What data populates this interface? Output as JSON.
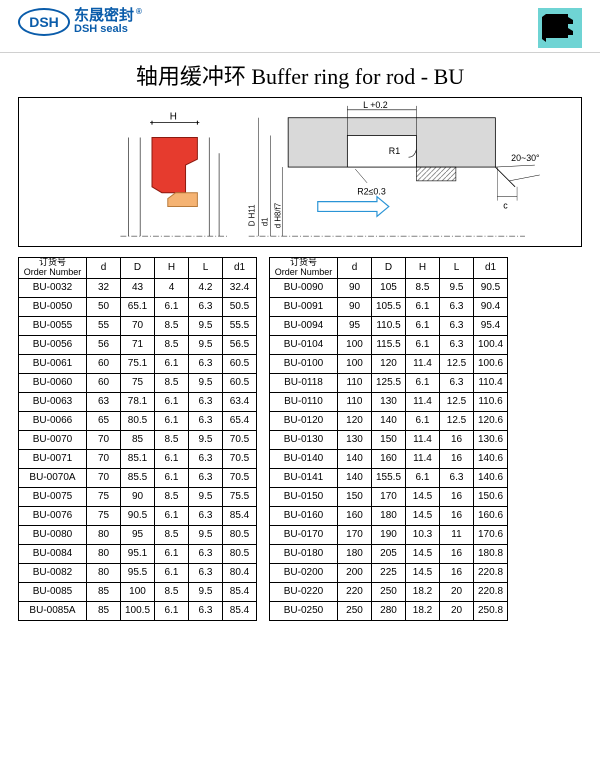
{
  "header": {
    "logo_abbr": "DSH",
    "logo_cn": "东晟密封",
    "logo_en": "DSH seals",
    "reg_mark": "®"
  },
  "title": "轴用缓冲环 Buffer ring for rod - BU",
  "diagram": {
    "labels": {
      "H": "H",
      "L": "L  +0.2",
      "R1": "R1",
      "R2": "R2≤0.3",
      "angle": "20~30°",
      "c": "c",
      "dH11": "D H11",
      "df7": "d  f7",
      "dH8": "d H8/f7",
      "d1": "d1"
    },
    "colors": {
      "seal_red": "#e63b2e",
      "seal_orange": "#f5b373",
      "housing": "#d9d9d9",
      "hatch": "#888888",
      "arrow": "#2a94d6",
      "line": "#000000",
      "teal": "#6fd4d4"
    }
  },
  "table_header": {
    "order_cn": "订货号",
    "order_en": "Order Number",
    "d": "d",
    "D": "D",
    "H": "H",
    "L": "L",
    "d1": "d1"
  },
  "left_rows": [
    [
      "BU-0032",
      "32",
      "43",
      "4",
      "4.2",
      "32.4"
    ],
    [
      "BU-0050",
      "50",
      "65.1",
      "6.1",
      "6.3",
      "50.5"
    ],
    [
      "BU-0055",
      "55",
      "70",
      "8.5",
      "9.5",
      "55.5"
    ],
    [
      "BU-0056",
      "56",
      "71",
      "8.5",
      "9.5",
      "56.5"
    ],
    [
      "BU-0061",
      "60",
      "75.1",
      "6.1",
      "6.3",
      "60.5"
    ],
    [
      "BU-0060",
      "60",
      "75",
      "8.5",
      "9.5",
      "60.5"
    ],
    [
      "BU-0063",
      "63",
      "78.1",
      "6.1",
      "6.3",
      "63.4"
    ],
    [
      "BU-0066",
      "65",
      "80.5",
      "6.1",
      "6.3",
      "65.4"
    ],
    [
      "BU-0070",
      "70",
      "85",
      "8.5",
      "9.5",
      "70.5"
    ],
    [
      "BU-0071",
      "70",
      "85.1",
      "6.1",
      "6.3",
      "70.5"
    ],
    [
      "BU-0070A",
      "70",
      "85.5",
      "6.1",
      "6.3",
      "70.5"
    ],
    [
      "BU-0075",
      "75",
      "90",
      "8.5",
      "9.5",
      "75.5"
    ],
    [
      "BU-0076",
      "75",
      "90.5",
      "6.1",
      "6.3",
      "85.4"
    ],
    [
      "BU-0080",
      "80",
      "95",
      "8.5",
      "9.5",
      "80.5"
    ],
    [
      "BU-0084",
      "80",
      "95.1",
      "6.1",
      "6.3",
      "80.5"
    ],
    [
      "BU-0082",
      "80",
      "95.5",
      "6.1",
      "6.3",
      "80.4"
    ],
    [
      "BU-0085",
      "85",
      "100",
      "8.5",
      "9.5",
      "85.4"
    ],
    [
      "BU-0085A",
      "85",
      "100.5",
      "6.1",
      "6.3",
      "85.4"
    ]
  ],
  "right_rows": [
    [
      "BU-0090",
      "90",
      "105",
      "8.5",
      "9.5",
      "90.5"
    ],
    [
      "BU-0091",
      "90",
      "105.5",
      "6.1",
      "6.3",
      "90.4"
    ],
    [
      "BU-0094",
      "95",
      "110.5",
      "6.1",
      "6.3",
      "95.4"
    ],
    [
      "BU-0104",
      "100",
      "115.5",
      "6.1",
      "6.3",
      "100.4"
    ],
    [
      "BU-0100",
      "100",
      "120",
      "11.4",
      "12.5",
      "100.6"
    ],
    [
      "BU-0118",
      "110",
      "125.5",
      "6.1",
      "6.3",
      "110.4"
    ],
    [
      "BU-0110",
      "110",
      "130",
      "11.4",
      "12.5",
      "110.6"
    ],
    [
      "BU-0120",
      "120",
      "140",
      "6.1",
      "12.5",
      "120.6"
    ],
    [
      "BU-0130",
      "130",
      "150",
      "11.4",
      "16",
      "130.6"
    ],
    [
      "BU-0140",
      "140",
      "160",
      "11.4",
      "16",
      "140.6"
    ],
    [
      "BU-0141",
      "140",
      "155.5",
      "6.1",
      "6.3",
      "140.6"
    ],
    [
      "BU-0150",
      "150",
      "170",
      "14.5",
      "16",
      "150.6"
    ],
    [
      "BU-0160",
      "160",
      "180",
      "14.5",
      "16",
      "160.6"
    ],
    [
      "BU-0170",
      "170",
      "190",
      "10.3",
      "11",
      "170.6"
    ],
    [
      "BU-0180",
      "180",
      "205",
      "14.5",
      "16",
      "180.8"
    ],
    [
      "BU-0200",
      "200",
      "225",
      "14.5",
      "16",
      "220.8"
    ],
    [
      "BU-0220",
      "220",
      "250",
      "18.2",
      "20",
      "220.8"
    ],
    [
      "BU-0250",
      "250",
      "280",
      "18.2",
      "20",
      "250.8"
    ]
  ]
}
